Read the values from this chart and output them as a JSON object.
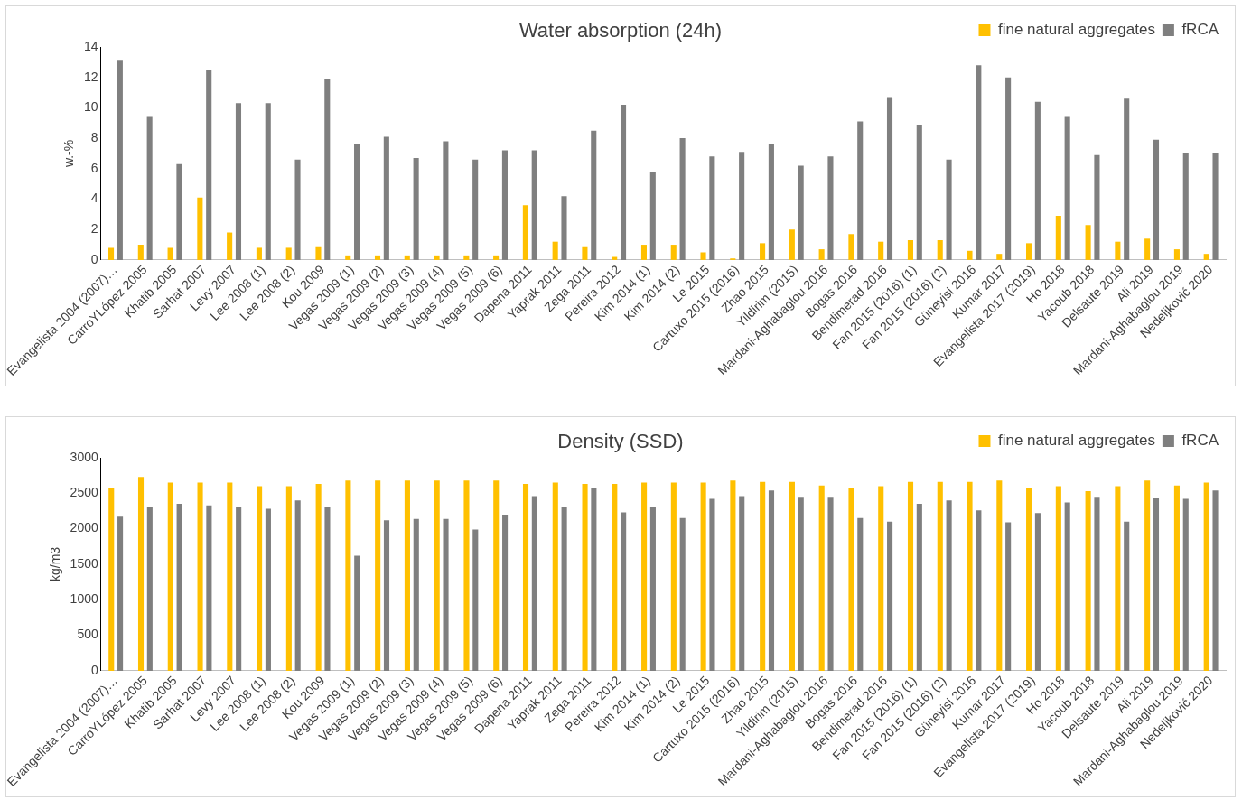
{
  "chart_data": [
    {
      "type": "bar",
      "title": "Water absorption (24h)",
      "ylabel": "w.-%",
      "legend": "top right",
      "ylim": [
        0,
        14
      ],
      "yticks": [
        0,
        2,
        4,
        6,
        8,
        10,
        12,
        14
      ],
      "categories": [
        "Evangelista 2004 (2007)…",
        "CarroYLópez 2005",
        "Khatib 2005",
        "Sarhat 2007",
        "Levy 2007",
        "Lee 2008 (1)",
        "Lee 2008 (2)",
        "Kou 2009",
        "Vegas 2009 (1)",
        "Vegas 2009 (2)",
        "Vegas 2009 (3)",
        "Vegas 2009 (4)",
        "Vegas 2009 (5)",
        "Vegas 2009 (6)",
        "Dapena 2011",
        "Yaprak 2011",
        "Zega 2011",
        "Pereira 2012",
        "Kim 2014 (1)",
        "Kim 2014 (2)",
        "Le 2015",
        "Cartuxo 2015 (2016)",
        "Zhao 2015",
        "Yildirim (2015)",
        "Mardani-Aghabaglou 2016",
        "Bogas 2016",
        "Bendimerad 2016",
        "Fan 2015 (2016) (1)",
        "Fan 2015 (2016) (2)",
        "Güneyisi 2016",
        "Kumar 2017",
        "Evangelista 2017 (2019)",
        "Ho 2018",
        "Yacoub 2018",
        "Delsaute 2019",
        "Ali 2019",
        "Mardani-Aghabaglou 2019",
        "Nedeljković 2020"
      ],
      "series": [
        {
          "name": "fine natural aggregates",
          "color": "#ffc000",
          "values": [
            0.8,
            1.0,
            0.8,
            4.1,
            1.8,
            0.8,
            0.8,
            0.9,
            0.3,
            0.3,
            0.3,
            0.3,
            0.3,
            0.3,
            3.6,
            1.2,
            0.9,
            0.2,
            1.0,
            1.0,
            0.5,
            0.1,
            1.1,
            2.0,
            0.7,
            1.7,
            1.2,
            1.3,
            1.3,
            0.6,
            0.4,
            1.1,
            2.9,
            2.3,
            1.2,
            1.4,
            0.7,
            0.4
          ]
        },
        {
          "name": "fRCA",
          "color": "#7f7f7f",
          "values": [
            13.1,
            9.4,
            6.3,
            12.5,
            10.3,
            10.3,
            6.6,
            11.9,
            7.6,
            8.1,
            6.7,
            7.8,
            6.6,
            7.2,
            7.2,
            4.2,
            8.5,
            10.2,
            5.8,
            8.0,
            6.8,
            7.1,
            7.6,
            6.2,
            6.8,
            9.1,
            10.7,
            8.9,
            6.6,
            12.8,
            12.0,
            10.4,
            9.4,
            6.9,
            10.6,
            7.9,
            7.0,
            7.0
          ]
        }
      ]
    },
    {
      "type": "bar",
      "title": "Density (SSD)",
      "ylabel": "kg/m3",
      "legend": "top right",
      "ylim": [
        0,
        3000
      ],
      "yticks": [
        0,
        500,
        1000,
        1500,
        2000,
        2500,
        3000
      ],
      "categories": [
        "Evangelista 2004 (2007)…",
        "CarroYLópez 2005",
        "Khatib 2005",
        "Sarhat 2007",
        "Levy 2007",
        "Lee 2008 (1)",
        "Lee 2008 (2)",
        "Kou 2009",
        "Vegas 2009 (1)",
        "Vegas 2009 (2)",
        "Vegas 2009 (3)",
        "Vegas 2009 (4)",
        "Vegas 2009 (5)",
        "Vegas 2009 (6)",
        "Dapena 2011",
        "Yaprak 2011",
        "Zega 2011",
        "Pereira 2012",
        "Kim 2014 (1)",
        "Kim 2014 (2)",
        "Le 2015",
        "Cartuxo 2015 (2016)",
        "Zhao 2015",
        "Yildirim (2015)",
        "Mardani-Aghabaglou 2016",
        "Bogas 2016",
        "Bendimerad 2016",
        "Fan 2015 (2016) (1)",
        "Fan 2015 (2016) (2)",
        "Güneyisi 2016",
        "Kumar 2017",
        "Evangelista 2017 (2019)",
        "Ho 2018",
        "Yacoub 2018",
        "Delsaute 2019",
        "Ali 2019",
        "Mardani-Aghabaglou 2019",
        "Nedeljković 2020"
      ],
      "series": [
        {
          "name": "fine natural aggregates",
          "color": "#ffc000",
          "values": [
            2570,
            2730,
            2650,
            2650,
            2650,
            2600,
            2600,
            2630,
            2680,
            2680,
            2680,
            2680,
            2680,
            2680,
            2630,
            2650,
            2630,
            2630,
            2650,
            2650,
            2650,
            2680,
            2660,
            2660,
            2610,
            2570,
            2600,
            2660,
            2660,
            2660,
            2680,
            2580,
            2600,
            2530,
            2600,
            2680,
            2610,
            2650
          ]
        },
        {
          "name": "fRCA",
          "color": "#7f7f7f",
          "values": [
            2170,
            2300,
            2350,
            2330,
            2310,
            2280,
            2400,
            2300,
            1620,
            2120,
            2140,
            2140,
            1990,
            2200,
            2460,
            2310,
            2570,
            2230,
            2300,
            2150,
            2420,
            2460,
            2540,
            2450,
            2450,
            2150,
            2100,
            2350,
            2400,
            2260,
            2090,
            2220,
            2370,
            2450,
            2100,
            2440,
            2420,
            2540
          ]
        }
      ]
    }
  ]
}
